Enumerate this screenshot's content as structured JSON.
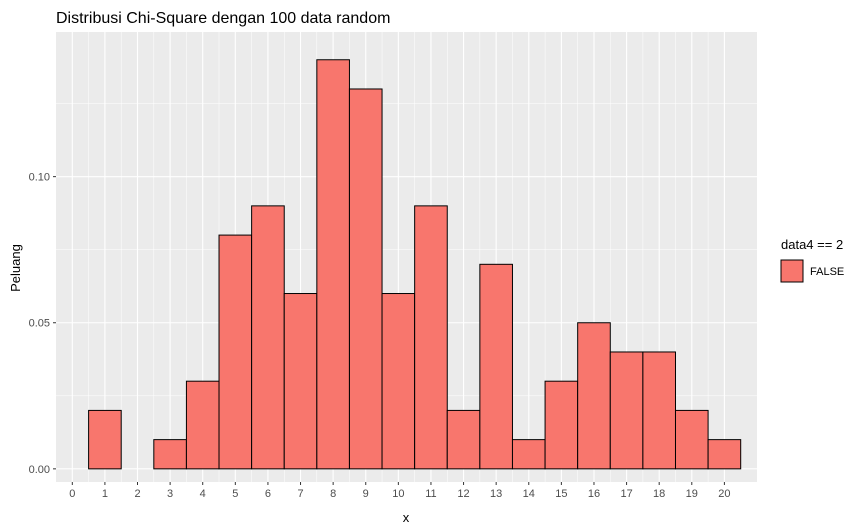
{
  "chart_data": {
    "type": "bar",
    "title": "Distribusi Chi-Square dengan 100 data random",
    "xlabel": "x",
    "ylabel": "Peluang",
    "categories": [
      1,
      2,
      3,
      4,
      5,
      6,
      7,
      8,
      9,
      10,
      11,
      12,
      13,
      14,
      15,
      16,
      17,
      18,
      19,
      20
    ],
    "values": [
      0.02,
      0.0,
      0.01,
      0.03,
      0.08,
      0.09,
      0.06,
      0.14,
      0.13,
      0.06,
      0.09,
      0.02,
      0.07,
      0.01,
      0.03,
      0.05,
      0.04,
      0.04,
      0.02,
      0.01
    ],
    "x_ticks": [
      "0",
      "1",
      "2",
      "3",
      "4",
      "5",
      "6",
      "7",
      "8",
      "9",
      "10",
      "11",
      "12",
      "13",
      "14",
      "15",
      "16",
      "17",
      "18",
      "19",
      "20"
    ],
    "y_ticks": [
      "0.00",
      "0.05",
      "0.10"
    ],
    "y_tick_values": [
      0,
      0.05,
      0.1
    ],
    "xlim": [
      -0.5,
      21.0
    ],
    "ylim": [
      -0.0045,
      0.1495
    ],
    "grid": true,
    "legend": {
      "title": "data4 == 2",
      "entries": [
        {
          "label": "FALSE",
          "color": "#F8766D"
        }
      ],
      "position": "right"
    },
    "colors": {
      "bar_fill": "#F8766D",
      "bar_stroke": "#000000",
      "panel_bg": "#EBEBEB",
      "grid": "#FFFFFF"
    }
  }
}
